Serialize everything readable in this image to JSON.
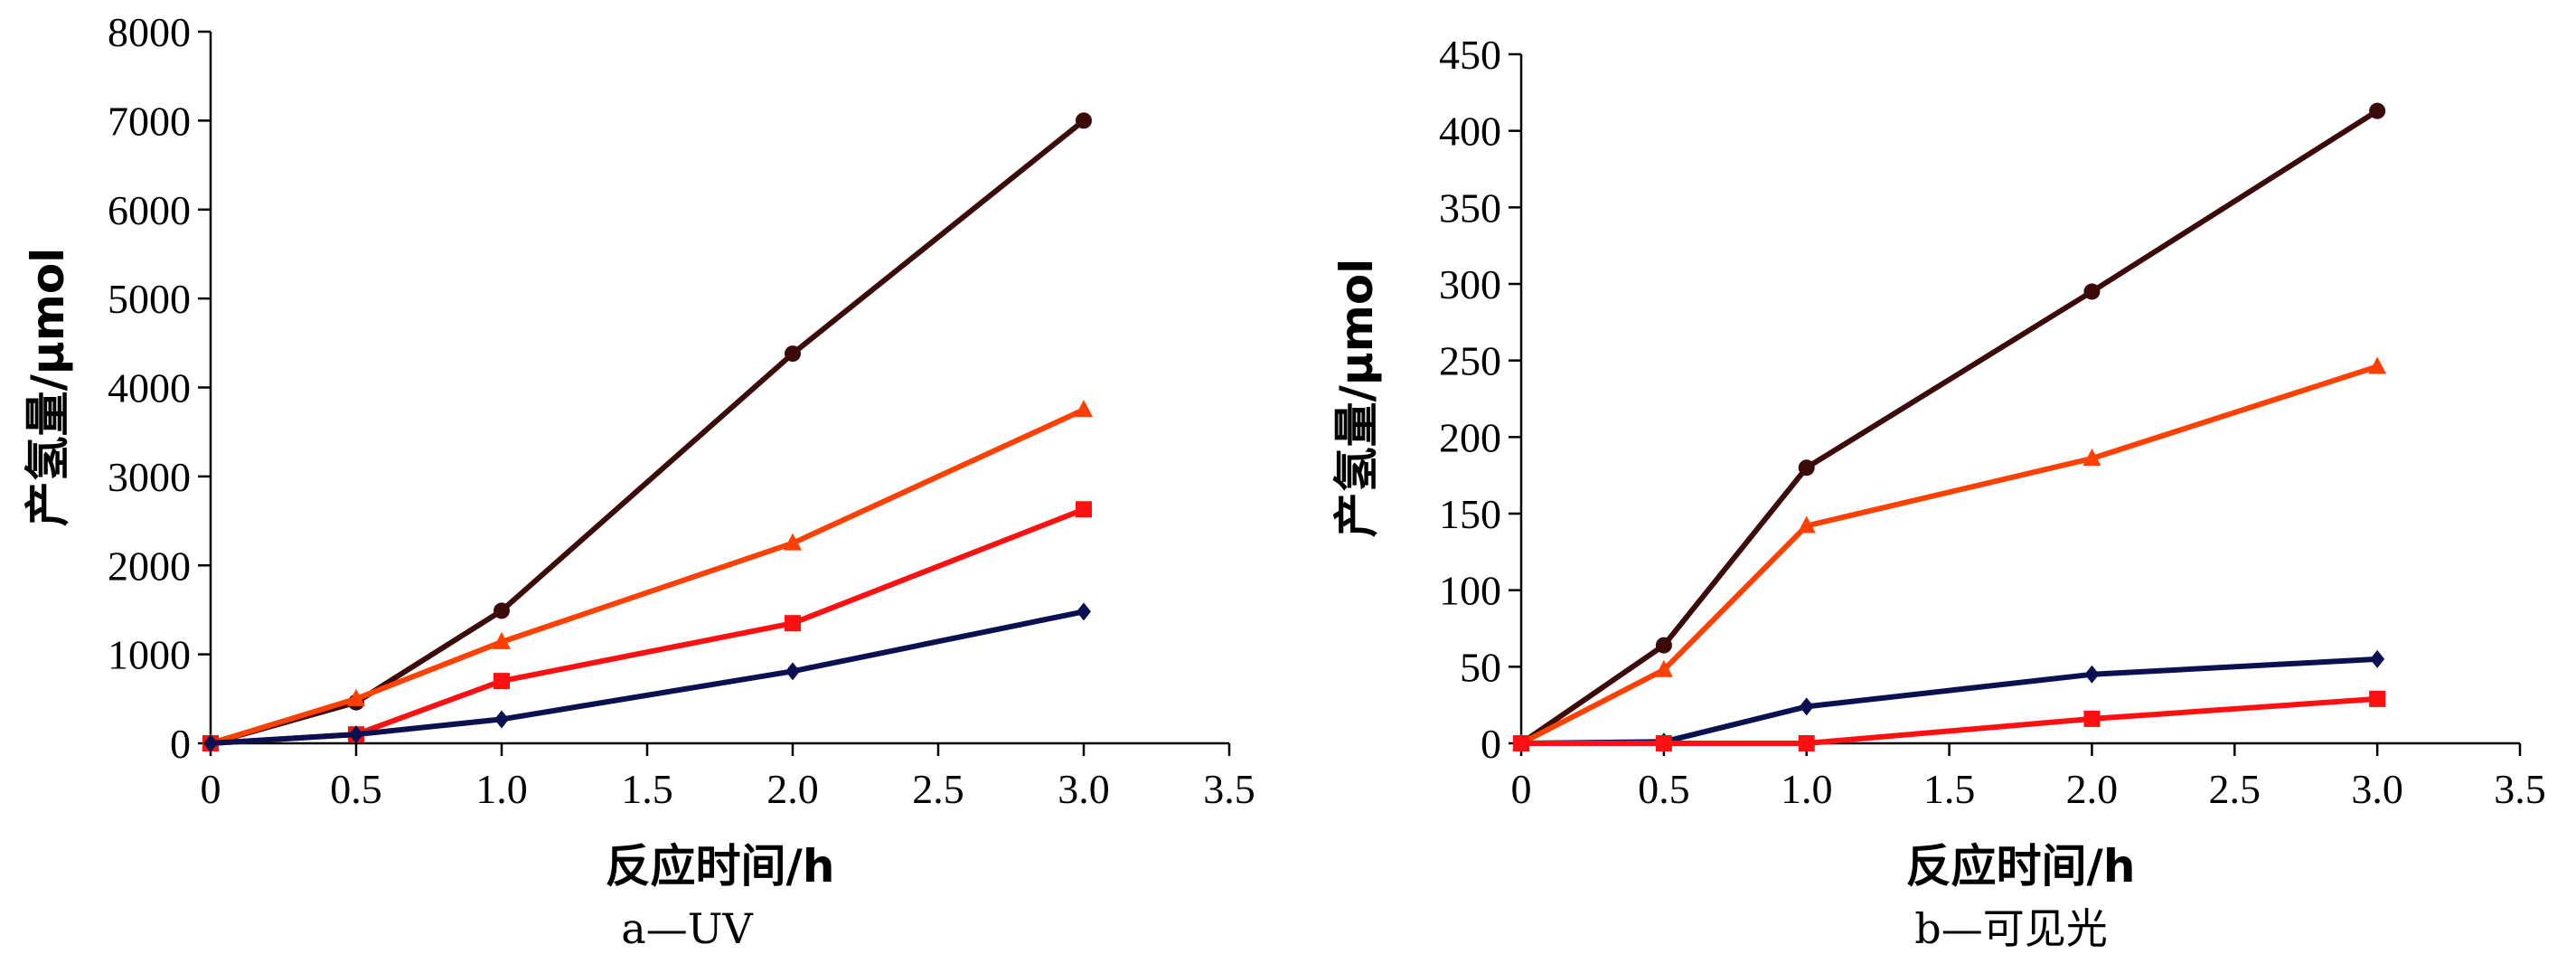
{
  "chart_data": [
    {
      "type": "line",
      "caption": "a—UV",
      "xlabel": "反应时间/h",
      "ylabel": "产氢量/μmol",
      "xlim": [
        0,
        3.5
      ],
      "ylim": [
        0,
        8000
      ],
      "xticks": [
        "0",
        "0.5",
        "1.0",
        "1.5",
        "2.0",
        "2.5",
        "3.0",
        "3.5"
      ],
      "yticks": [
        "0",
        "1000",
        "2000",
        "3000",
        "4000",
        "5000",
        "6000",
        "7000",
        "8000"
      ],
      "grid": false,
      "legend": "none",
      "x": [
        0,
        0.5,
        1.0,
        2.0,
        3.0
      ],
      "series": [
        {
          "name": "series-circle",
          "marker": "circle",
          "color": "#3d0a0a",
          "values": [
            0,
            460,
            1490,
            4380,
            7000
          ]
        },
        {
          "name": "series-triangle",
          "marker": "triangle",
          "color": "#ff4000",
          "values": [
            0,
            500,
            1140,
            2250,
            3750
          ]
        },
        {
          "name": "series-square",
          "marker": "square",
          "color": "#ff1010",
          "values": [
            0,
            100,
            700,
            1350,
            2630
          ]
        },
        {
          "name": "series-diamond",
          "marker": "diamond",
          "color": "#0a1050",
          "values": [
            0,
            100,
            270,
            810,
            1480
          ]
        }
      ]
    },
    {
      "type": "line",
      "caption": "b—可见光",
      "xlabel": "反应时间/h",
      "ylabel": "产氢量/μmol",
      "xlim": [
        0,
        3.5
      ],
      "ylim": [
        0,
        450
      ],
      "xticks": [
        "0",
        "0.5",
        "1.0",
        "1.5",
        "2.0",
        "2.5",
        "3.0",
        "3.5"
      ],
      "yticks": [
        "0",
        "50",
        "100",
        "150",
        "200",
        "250",
        "300",
        "350",
        "400",
        "450"
      ],
      "grid": false,
      "legend": "none",
      "x": [
        0,
        0.5,
        1.0,
        2.0,
        3.0
      ],
      "series": [
        {
          "name": "series-circle",
          "marker": "circle",
          "color": "#3d0a0a",
          "values": [
            0,
            64,
            180,
            295,
            413
          ]
        },
        {
          "name": "series-triangle",
          "marker": "triangle",
          "color": "#ff4000",
          "values": [
            0,
            48,
            142,
            186,
            246
          ]
        },
        {
          "name": "series-diamond",
          "marker": "diamond",
          "color": "#0a1050",
          "values": [
            0,
            1,
            24,
            45,
            55
          ]
        },
        {
          "name": "series-square",
          "marker": "square",
          "color": "#ff1010",
          "values": [
            0,
            0,
            0,
            16,
            29
          ]
        }
      ]
    }
  ]
}
